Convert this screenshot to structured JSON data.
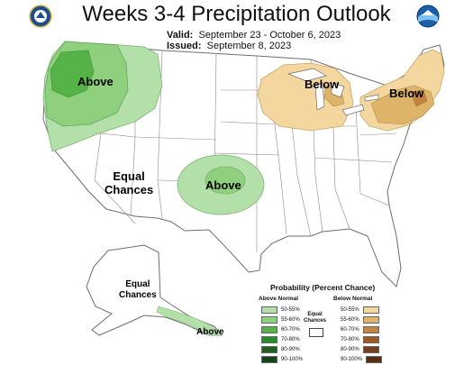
{
  "title": "Weeks 3-4 Precipitation Outlook",
  "valid_label": "Valid:",
  "valid_dates": "September 23 - October 6, 2023",
  "issued_label": "Issued:",
  "issued_date": "September 8, 2023",
  "logos": [
    "doc-seal-icon",
    "noaa-logo-icon"
  ],
  "map_labels": {
    "northwest": "Above",
    "great_lakes": "Below",
    "northeast": "Below",
    "equal_chances_conus": [
      "Equal",
      "Chances"
    ],
    "southern_plains": "Above",
    "equal_chances_alaska": [
      "Equal",
      "Chances"
    ],
    "alaska": "Above"
  },
  "legend": {
    "title": "Probability (Percent Chance)",
    "above_header": "Above Normal",
    "below_header": "Below Normal",
    "equal_label": [
      "Equal",
      "Chances"
    ],
    "above": [
      {
        "label": "50-55%",
        "color": "#b3dfa8"
      },
      {
        "label": "55-60%",
        "color": "#8fd07f"
      },
      {
        "label": "60-70%",
        "color": "#55b348"
      },
      {
        "label": "70-80%",
        "color": "#2a8a2e"
      },
      {
        "label": "80-90%",
        "color": "#1c6322"
      },
      {
        "label": "90-100%",
        "color": "#114417"
      }
    ],
    "below": [
      {
        "label": "50-55%",
        "color": "#f3d79e"
      },
      {
        "label": "55-60%",
        "color": "#ddb46a"
      },
      {
        "label": "60-70%",
        "color": "#c2843e"
      },
      {
        "label": "70-80%",
        "color": "#9c5a25"
      },
      {
        "label": "80-90%",
        "color": "#77401a"
      },
      {
        "label": "90-100%",
        "color": "#542d12"
      }
    ]
  }
}
